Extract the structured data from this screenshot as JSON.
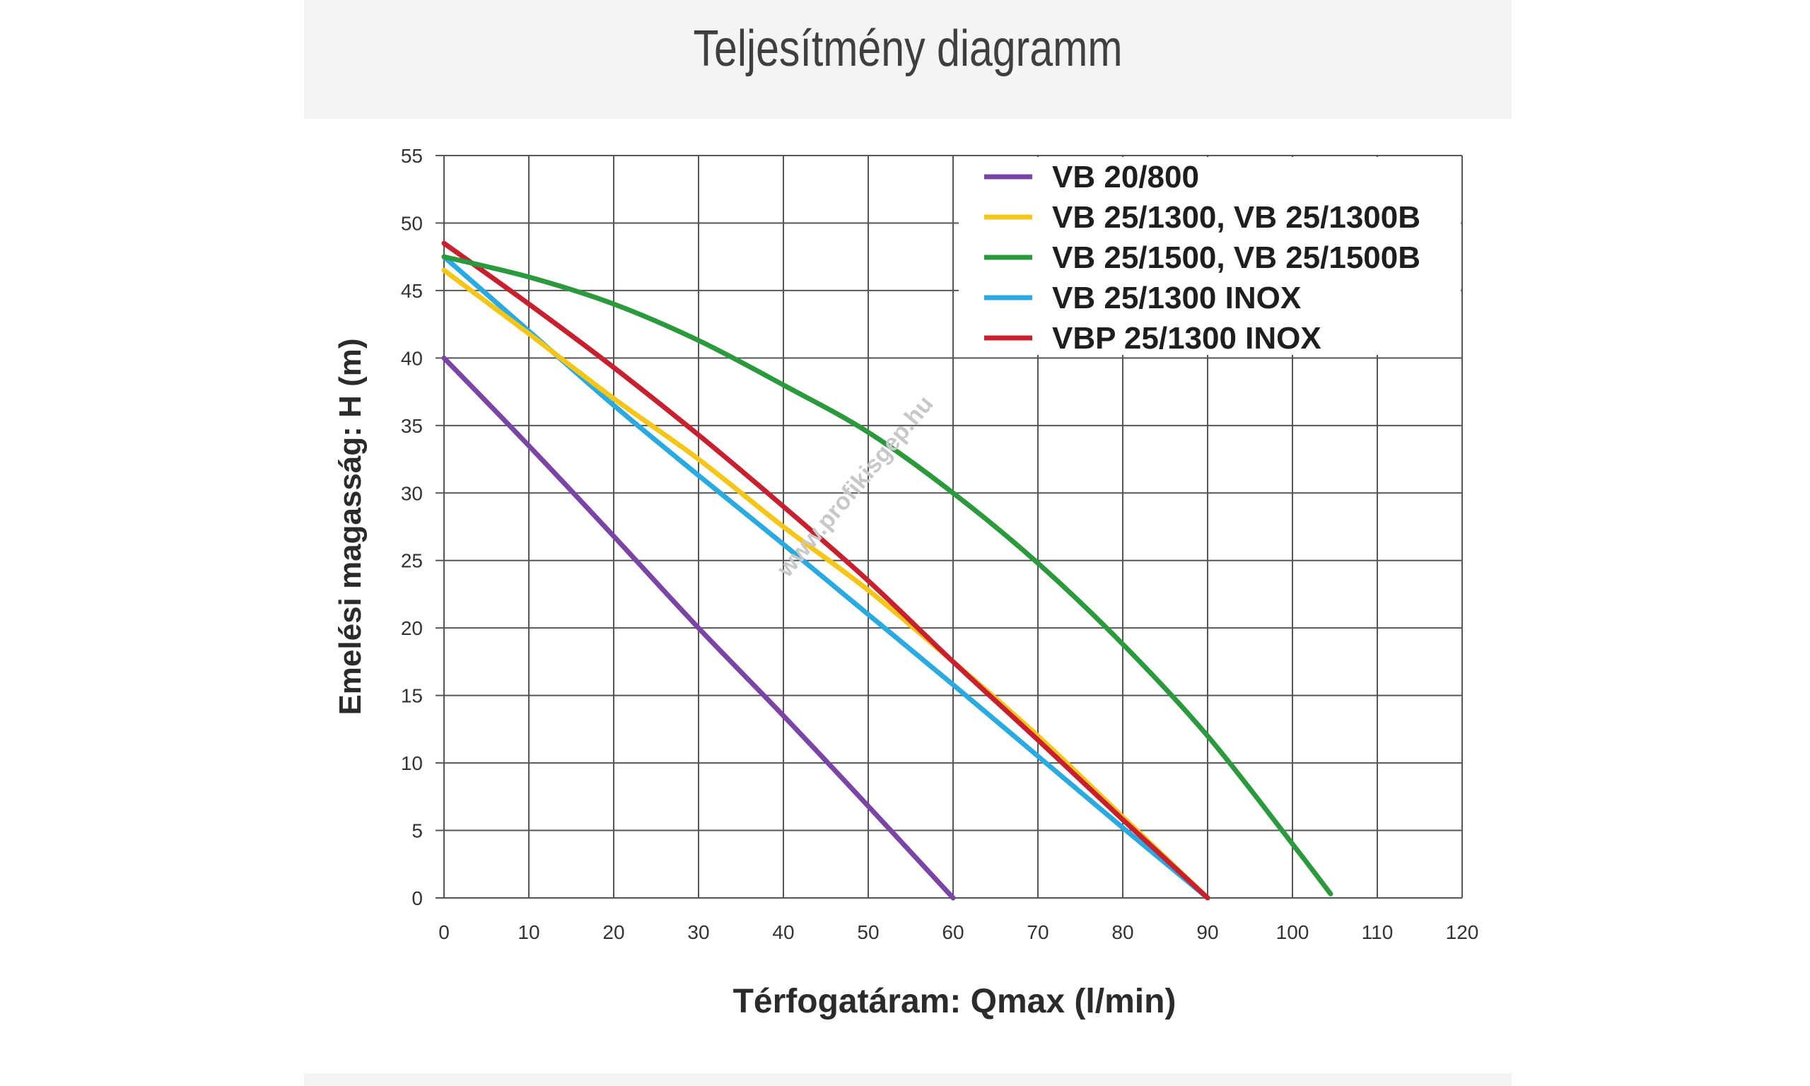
{
  "header": {
    "title": "Teljesítmény diagramm"
  },
  "watermark": "www.profikisgep.hu",
  "chart_data": {
    "type": "line",
    "title": "",
    "xlabel": "Térfogatáram: Qmax (l/min)",
    "ylabel": "Emelési magasság: H (m)",
    "xlim": [
      0,
      120
    ],
    "ylim": [
      0,
      55
    ],
    "xticks": [
      "0",
      "10",
      "20",
      "30",
      "40",
      "50",
      "60",
      "70",
      "80",
      "90",
      "100",
      "110",
      "120"
    ],
    "yticks": [
      "0",
      "5",
      "10",
      "15",
      "20",
      "25",
      "30",
      "35",
      "40",
      "45",
      "50",
      "55"
    ],
    "grid": true,
    "legend_position": "top-right",
    "series": [
      {
        "name": "VB 20/800",
        "color": "#7b45a8",
        "points": [
          [
            0,
            40
          ],
          [
            10,
            33.5
          ],
          [
            20,
            26.8
          ],
          [
            30,
            20
          ],
          [
            40,
            13.5
          ],
          [
            50,
            6.8
          ],
          [
            60,
            0
          ]
        ]
      },
      {
        "name": "VB 25/1300, VB 25/1300B",
        "color": "#f5c518",
        "points": [
          [
            0,
            46.5
          ],
          [
            10,
            41.8
          ],
          [
            20,
            37
          ],
          [
            30,
            32.5
          ],
          [
            40,
            27.5
          ],
          [
            50,
            22.8
          ],
          [
            60,
            17.5
          ],
          [
            70,
            12
          ],
          [
            80,
            6
          ],
          [
            90,
            0
          ]
        ]
      },
      {
        "name": "VB 25/1500, VB 25/1500B",
        "color": "#2a9a3c",
        "points": [
          [
            0,
            47.5
          ],
          [
            10,
            46
          ],
          [
            20,
            44
          ],
          [
            30,
            41.3
          ],
          [
            40,
            38
          ],
          [
            50,
            34.5
          ],
          [
            60,
            30
          ],
          [
            70,
            24.8
          ],
          [
            80,
            18.8
          ],
          [
            90,
            12
          ],
          [
            100,
            4
          ],
          [
            104.5,
            0.3
          ]
        ]
      },
      {
        "name": "VB 25/1300 INOX",
        "color": "#29abe2",
        "points": [
          [
            0,
            47.5
          ],
          [
            10,
            42
          ],
          [
            20,
            36.5
          ],
          [
            30,
            31.3
          ],
          [
            40,
            26.2
          ],
          [
            50,
            21
          ],
          [
            60,
            15.8
          ],
          [
            70,
            10.5
          ],
          [
            80,
            5.2
          ],
          [
            90,
            0
          ]
        ]
      },
      {
        "name": "VBP 25/1300 INOX",
        "color": "#c8202f",
        "points": [
          [
            0,
            48.5
          ],
          [
            10,
            44
          ],
          [
            20,
            39.3
          ],
          [
            30,
            34.3
          ],
          [
            40,
            29
          ],
          [
            50,
            23.5
          ],
          [
            60,
            17.5
          ],
          [
            70,
            11.7
          ],
          [
            80,
            5.8
          ],
          [
            90,
            0
          ]
        ]
      }
    ]
  }
}
